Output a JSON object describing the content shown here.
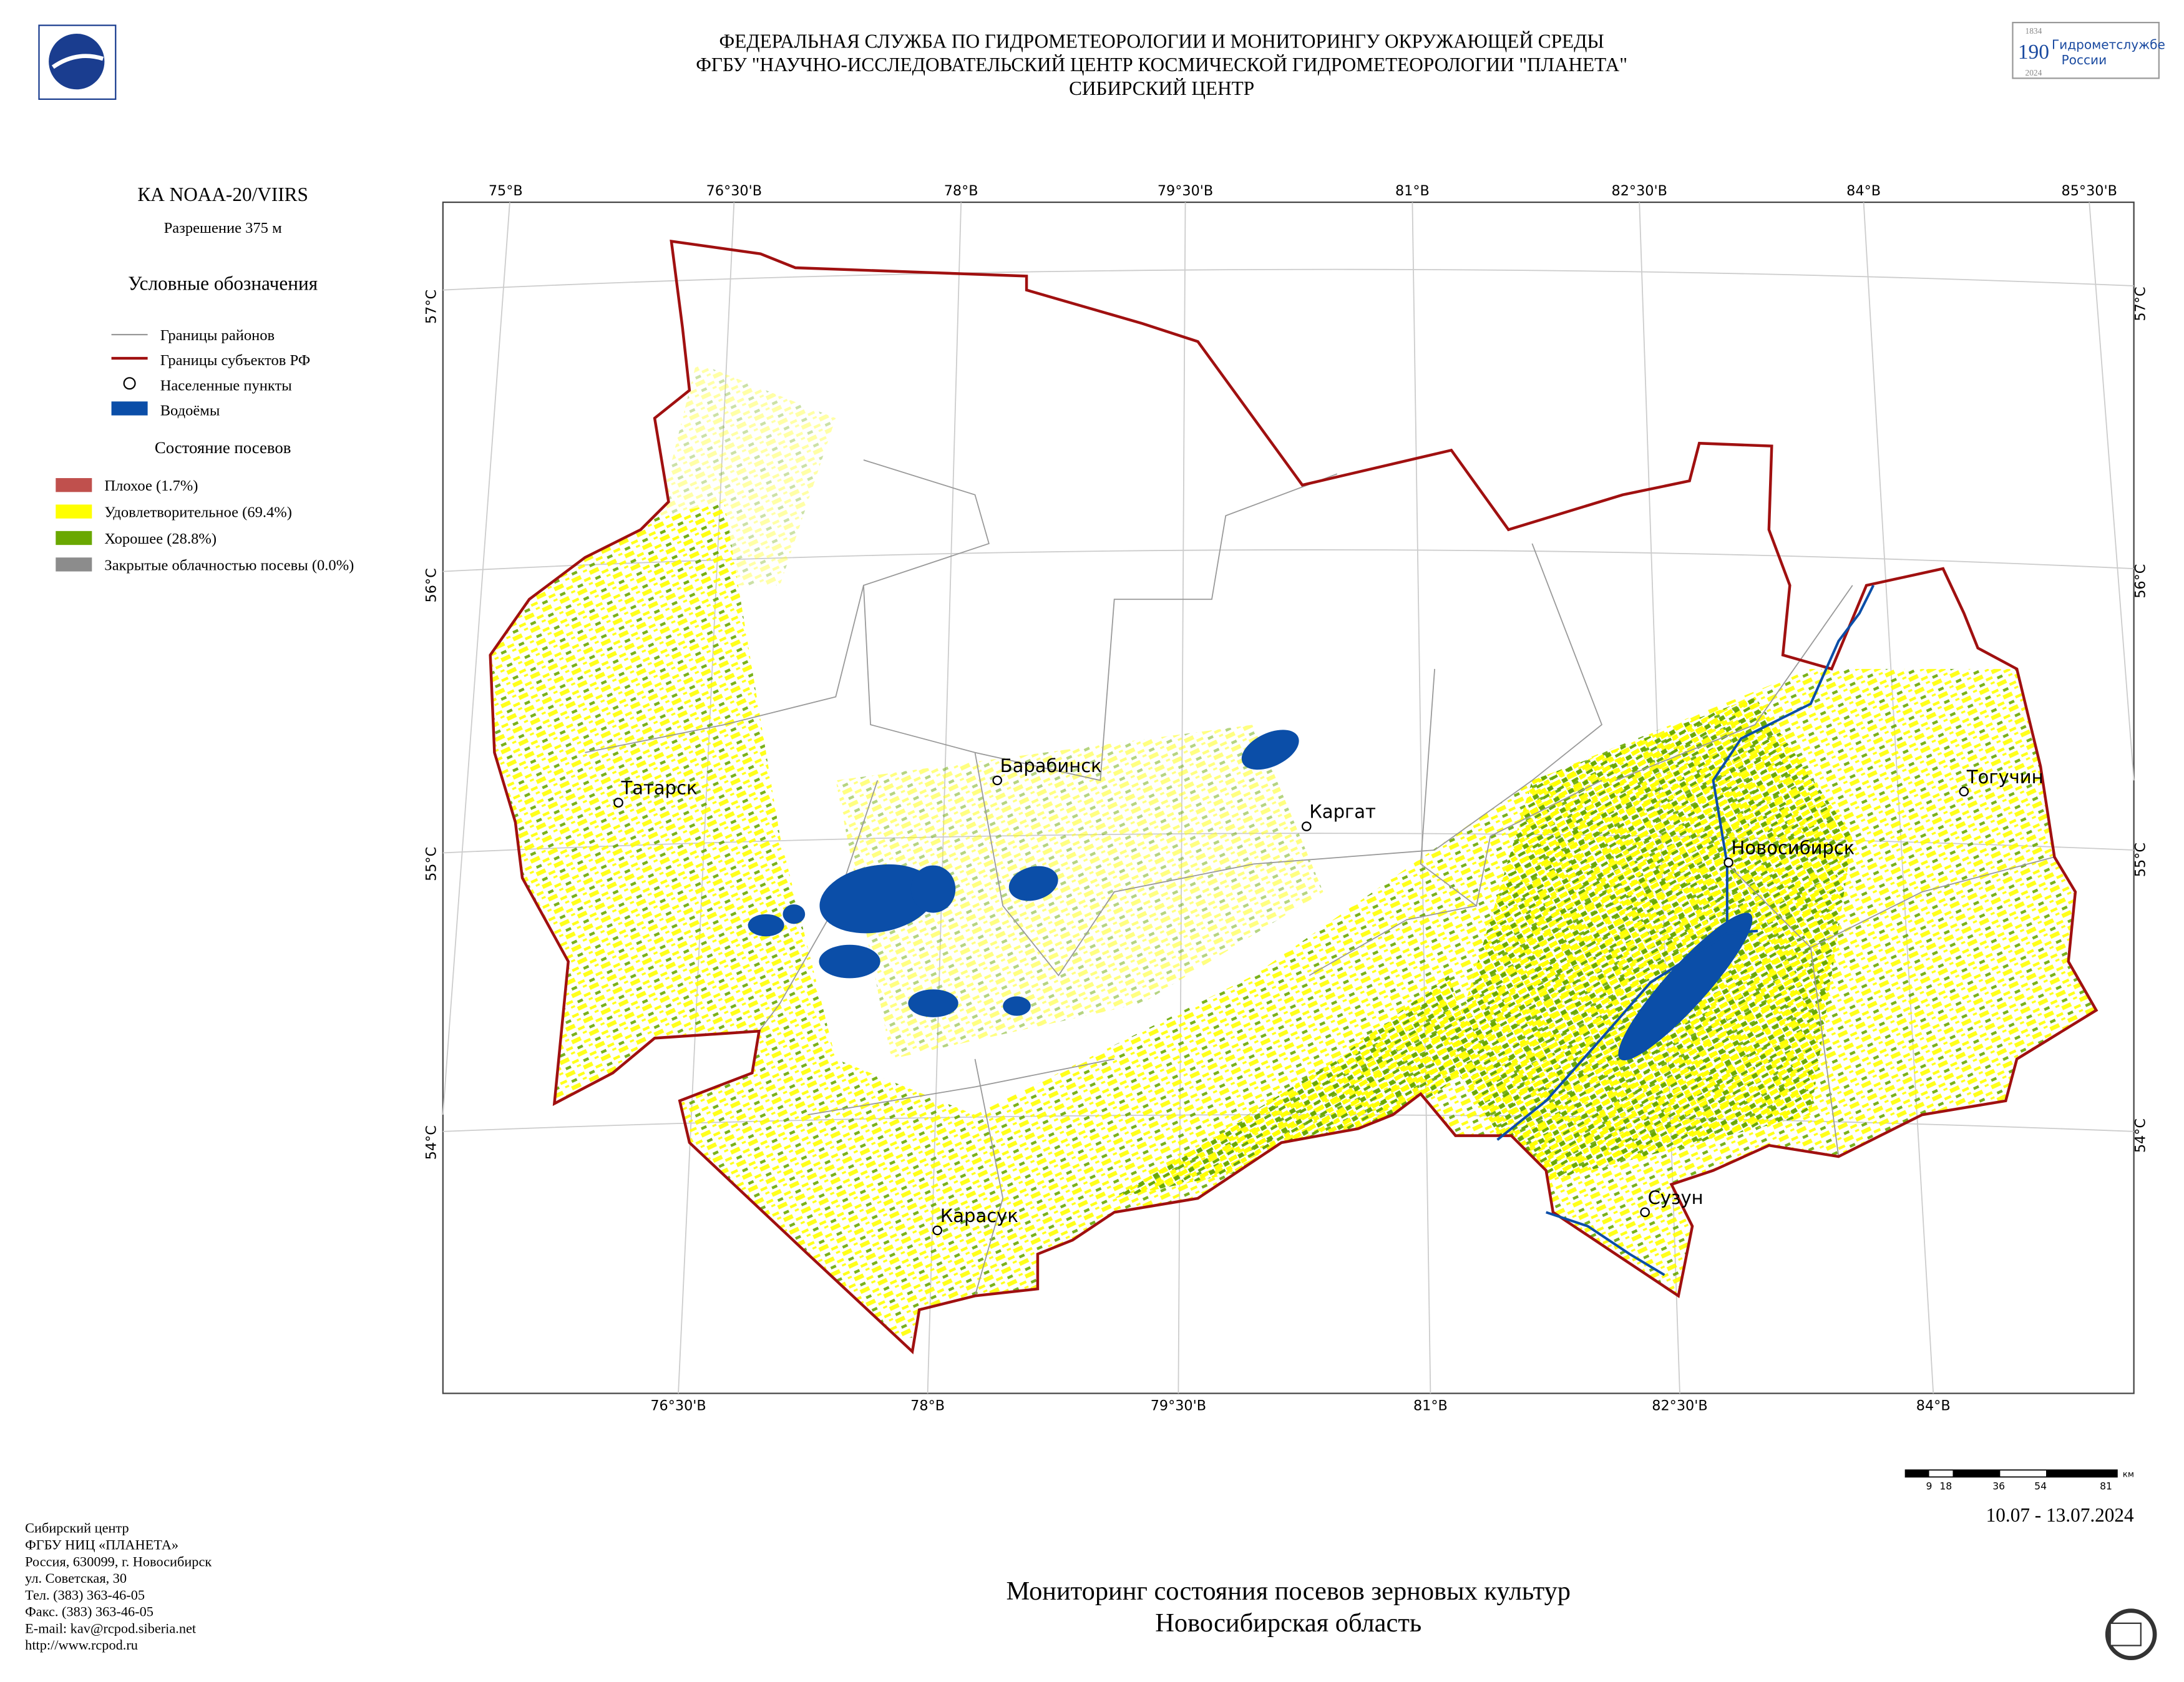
{
  "header": {
    "lines": [
      "ФЕДЕРАЛЬНАЯ СЛУЖБА ПО ГИДРОМЕТЕОРОЛОГИИ И МОНИТОРИНГУ ОКРУЖАЮЩЕЙ СРЕДЫ",
      "ФГБУ \"НАУЧНО-ИССЛЕДОВАТЕЛЬСКИЙ ЦЕНТР КОСМИЧЕСКОЙ ГИДРОМЕТЕОРОЛОГИИ \"ПЛАНЕТА\"",
      "СИБИРСКИЙ ЦЕНТР"
    ],
    "logo": {
      "number": "190",
      "years": [
        "1834",
        "2024"
      ],
      "text": [
        "Гидрометслужбе",
        "России"
      ]
    }
  },
  "info": {
    "satellite": "КА NOAA-20/VIIRS",
    "resolution": "Разрешение 375 м"
  },
  "legend": {
    "title": "Условные обозначения",
    "items": [
      "Границы районов",
      "Границы субъектов РФ",
      "Населенные пункты",
      "Водоёмы"
    ],
    "crop_title": "Состояние посевов",
    "crop_items": [
      "Плохое (1.7%)",
      "Удовлетворительное (69.4%)",
      "Хорошее (28.8%)",
      "Закрытые облачностью посевы (0.0%)"
    ]
  },
  "map": {
    "top_labels": [
      "75°В",
      "76°30'В",
      "78°В",
      "79°30'В",
      "81°В",
      "82°30'В",
      "84°В",
      "85°30'В"
    ],
    "bottom_labels": [
      "76°30'В",
      "78°В",
      "79°30'В",
      "81°В",
      "82°30'В",
      "84°В"
    ],
    "left_labels": [
      "57°С",
      "56°С",
      "55°С",
      "54°С"
    ],
    "right_labels": [
      "57°С",
      "56°С",
      "55°С",
      "54°С"
    ],
    "cities": [
      "Татарск",
      "Барабинск",
      "Каргат",
      "Новосибирск",
      "Тогучин",
      "Карасук",
      "Сузун"
    ]
  },
  "scale": {
    "labels": [
      "9",
      "18",
      "36",
      "54",
      "81"
    ],
    "unit": "км"
  },
  "date": "10.07 - 13.07.2024",
  "footer": [
    "Сибирский центр",
    "ФГБУ НИЦ «ПЛАНЕТА»",
    "Россия, 630099, г. Новосибирск",
    "ул. Советская, 30",
    "Тел. (383) 363-46-05",
    "Факс. (383) 363-46-05",
    "E-mail: kav@rcpod.siberia.net",
    "http://www.rcpod.ru"
  ],
  "title": [
    "Мониторинг состояния посевов зерновых культур",
    "Новосибирская область"
  ]
}
